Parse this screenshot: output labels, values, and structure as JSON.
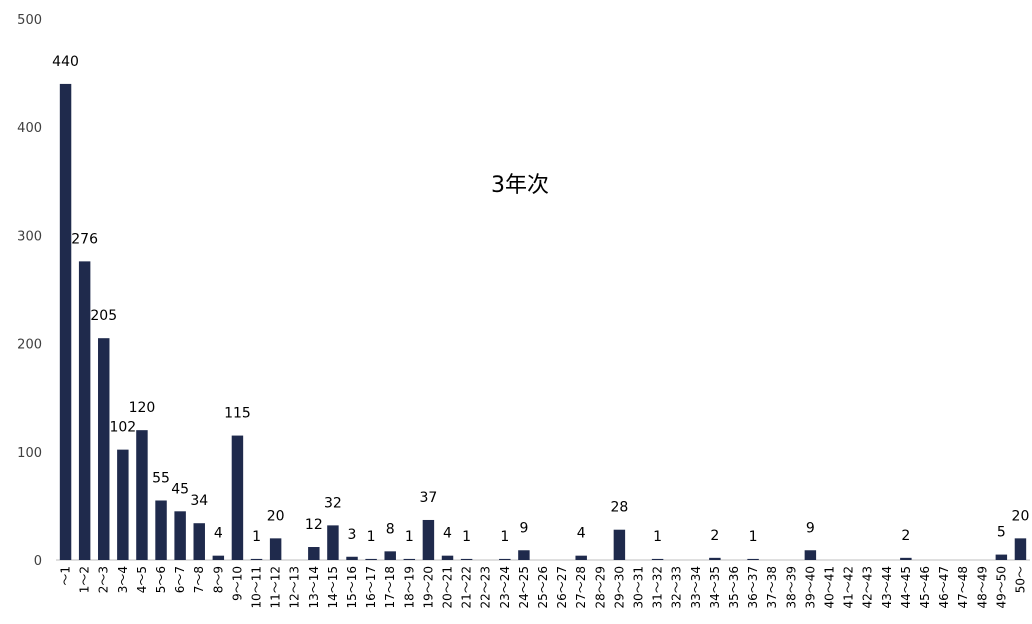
{
  "chart_data": {
    "type": "bar",
    "title": "3年次",
    "xlabel": "",
    "ylabel": "",
    "ylim": [
      0,
      500
    ],
    "yticks": [
      "0",
      "100",
      "200",
      "300",
      "400",
      "500"
    ],
    "grid": false,
    "legend": "none",
    "bar_color": "#1f2a4c",
    "categories": [
      "～1",
      "1～2",
      "2～3",
      "3～4",
      "4～5",
      "5～6",
      "6～7",
      "7～8",
      "8～9",
      "9～10",
      "10～11",
      "11～12",
      "12～13",
      "13～14",
      "14～15",
      "15～16",
      "16～17",
      "17～18",
      "18～19",
      "19～20",
      "20～21",
      "21～22",
      "22～23",
      "23～24",
      "24～25",
      "25～26",
      "26～27",
      "27～28",
      "28～29",
      "29～30",
      "30～31",
      "31～32",
      "32～33",
      "33～34",
      "34～35",
      "35～36",
      "36～37",
      "37～38",
      "38～39",
      "39～40",
      "40～41",
      "41～42",
      "42～43",
      "43～44",
      "44～45",
      "45～46",
      "46～47",
      "47～48",
      "48～49",
      "49～50",
      "50～"
    ],
    "values": [
      440,
      276,
      205,
      102,
      120,
      55,
      45,
      34,
      4,
      115,
      1,
      20,
      0,
      12,
      32,
      3,
      1,
      8,
      1,
      37,
      4,
      1,
      0,
      1,
      9,
      0,
      0,
      4,
      0,
      28,
      0,
      1,
      0,
      0,
      2,
      0,
      1,
      0,
      0,
      9,
      0,
      0,
      0,
      0,
      2,
      0,
      0,
      0,
      0,
      5,
      20
    ],
    "labels": [
      "440",
      "276",
      "205",
      "102",
      "120",
      "55",
      "45",
      "34",
      "4",
      "115",
      "1",
      "20",
      "",
      "12",
      "32",
      "3",
      "1",
      "8",
      "1",
      "37",
      "4",
      "1",
      "",
      "1",
      "9",
      "",
      "",
      "4",
      "",
      "28",
      "",
      "1",
      "",
      "",
      "2",
      "",
      "1",
      "",
      "",
      "9",
      "",
      "",
      "",
      "",
      "2",
      "",
      "",
      "",
      "",
      "5",
      "20"
    ]
  }
}
